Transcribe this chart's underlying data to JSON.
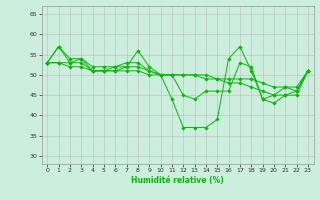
{
  "xlabel": "Humidité relative (%)",
  "background_color": "#cceedd",
  "grid_color": "#bbbbbb",
  "line_color": "#00bb00",
  "xlim": [
    -0.5,
    23.5
  ],
  "ylim": [
    28,
    67
  ],
  "yticks": [
    30,
    35,
    40,
    45,
    50,
    55,
    60,
    65
  ],
  "xticks": [
    0,
    1,
    2,
    3,
    4,
    5,
    6,
    7,
    8,
    9,
    10,
    11,
    12,
    13,
    14,
    15,
    16,
    17,
    18,
    19,
    20,
    21,
    22,
    23
  ],
  "series": [
    [
      53,
      57,
      53,
      54,
      51,
      51,
      51,
      52,
      56,
      52,
      50,
      44,
      37,
      37,
      37,
      39,
      54,
      57,
      51,
      44,
      43,
      45,
      46,
      51
    ],
    [
      53,
      57,
      54,
      54,
      52,
      52,
      52,
      53,
      53,
      51,
      50,
      50,
      45,
      44,
      46,
      46,
      46,
      53,
      52,
      44,
      45,
      47,
      46,
      51
    ],
    [
      53,
      53,
      53,
      53,
      51,
      51,
      52,
      52,
      52,
      51,
      50,
      50,
      50,
      50,
      50,
      49,
      49,
      49,
      49,
      48,
      47,
      47,
      47,
      51
    ],
    [
      53,
      53,
      52,
      52,
      51,
      51,
      51,
      51,
      51,
      50,
      50,
      50,
      50,
      50,
      49,
      49,
      48,
      48,
      47,
      46,
      45,
      45,
      45,
      51
    ]
  ]
}
